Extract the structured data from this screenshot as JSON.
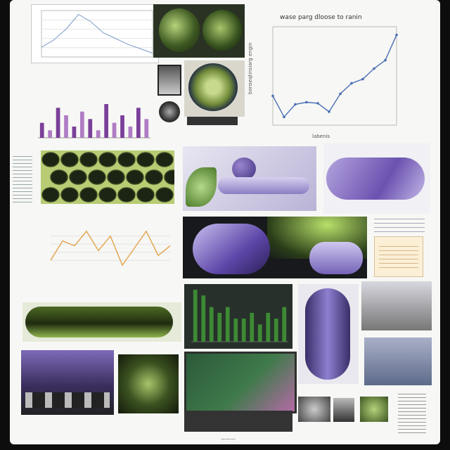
{
  "top_right_chart": {
    "title": "wase parg dloose to ranin",
    "ylabel": "bonseqtinsiarg engin",
    "xlabel": "labenis"
  },
  "bottom_tag": "———",
  "chart_data": [
    {
      "type": "line",
      "title": "",
      "x": [
        1,
        2,
        3,
        4,
        5,
        6,
        7,
        8,
        9,
        10,
        11,
        12
      ],
      "values": [
        3,
        1,
        2.2,
        2.4,
        2.3,
        1.5,
        3.2,
        4.2,
        4.6,
        5.6,
        6.4,
        8.8
      ],
      "color": "#4a6fb5",
      "grid": false
    },
    {
      "type": "line",
      "title": "",
      "x": [
        1,
        2,
        3,
        4,
        5,
        6,
        7,
        8,
        9,
        10
      ],
      "values": [
        4,
        5,
        6.5,
        8.5,
        7.5,
        6,
        5.2,
        4.4,
        3.8,
        3.2
      ],
      "color": "#7a9ac9",
      "grid": true
    },
    {
      "type": "bar",
      "values": [
        4,
        2,
        8,
        6,
        3,
        7,
        5,
        2,
        9,
        4,
        6,
        3,
        8,
        5
      ],
      "colors": [
        "#7b3f9a",
        "#b07cc4"
      ]
    },
    {
      "type": "line",
      "values": [
        40,
        48,
        46,
        52,
        44,
        50,
        38,
        45,
        52,
        42,
        46
      ],
      "color": "#e2a34a",
      "grid": true
    },
    {
      "type": "bar",
      "values": [
        9,
        8,
        6,
        5,
        6,
        4,
        4,
        5,
        3,
        5,
        4,
        6
      ],
      "colors": [
        "#3d8a34"
      ]
    }
  ]
}
